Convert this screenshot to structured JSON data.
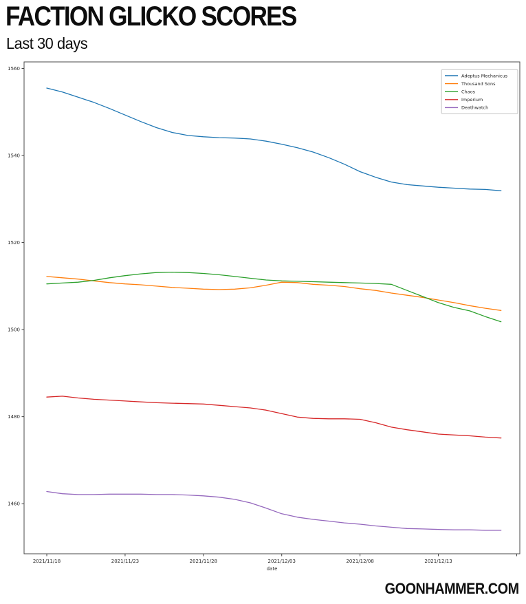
{
  "header": {
    "title": "FACTION GLICKO SCORES",
    "subtitle": "Last 30 days"
  },
  "footer": {
    "brand": "GOONHAMMER.COM"
  },
  "chart_data": {
    "type": "line",
    "title": "FACTION GLICKO SCORES",
    "subtitle": "Last 30 days",
    "xlabel": "date",
    "ylabel": "",
    "grid": false,
    "legend_position": "upper right",
    "ylim": [
      1448.5,
      1561.5
    ],
    "xlim_days": [
      -1.45,
      30.2
    ],
    "y_ticks": [
      1460,
      1480,
      1500,
      1520,
      1540,
      1560
    ],
    "x_tick_days": [
      0,
      5,
      10,
      15,
      20,
      25,
      30
    ],
    "x_tick_labels": [
      "2021/11/18",
      "2021/11/23",
      "2021/11/28",
      "2021/12/03",
      "2021/12/08",
      "2021/12/13",
      ""
    ],
    "x": [
      "2021/11/18",
      "2021/11/19",
      "2021/11/20",
      "2021/11/21",
      "2021/11/22",
      "2021/11/23",
      "2021/11/24",
      "2021/11/25",
      "2021/11/26",
      "2021/11/27",
      "2021/11/28",
      "2021/11/29",
      "2021/11/30",
      "2021/12/01",
      "2021/12/02",
      "2021/12/03",
      "2021/12/04",
      "2021/12/05",
      "2021/12/06",
      "2021/12/07",
      "2021/12/08",
      "2021/12/09",
      "2021/12/10",
      "2021/12/11",
      "2021/12/12",
      "2021/12/13",
      "2021/12/14",
      "2021/12/15",
      "2021/12/16",
      "2021/12/17"
    ],
    "series": [
      {
        "name": "Adeptus Mechanicus",
        "color": "#1f77b4",
        "values": [
          1555.5,
          1554.6,
          1553.4,
          1552.2,
          1550.8,
          1549.3,
          1547.8,
          1546.4,
          1545.3,
          1544.6,
          1544.3,
          1544.1,
          1544.0,
          1543.8,
          1543.3,
          1542.6,
          1541.8,
          1540.8,
          1539.5,
          1538.0,
          1536.3,
          1535.0,
          1533.9,
          1533.3,
          1533.0,
          1532.7,
          1532.5,
          1532.3,
          1532.2,
          1531.9
        ]
      },
      {
        "name": "Thousand Sons",
        "color": "#ff7f0e",
        "values": [
          1512.2,
          1511.9,
          1511.6,
          1511.2,
          1510.8,
          1510.5,
          1510.3,
          1510.0,
          1509.7,
          1509.5,
          1509.3,
          1509.2,
          1509.3,
          1509.6,
          1510.2,
          1510.9,
          1510.8,
          1510.4,
          1510.2,
          1509.9,
          1509.4,
          1509.0,
          1508.4,
          1507.9,
          1507.4,
          1506.8,
          1506.2,
          1505.5,
          1504.9,
          1504.4
        ]
      },
      {
        "name": "Chaos",
        "color": "#2ca02c",
        "values": [
          1510.5,
          1510.7,
          1510.9,
          1511.3,
          1511.9,
          1512.4,
          1512.8,
          1513.1,
          1513.2,
          1513.1,
          1512.9,
          1512.6,
          1512.2,
          1511.8,
          1511.4,
          1511.2,
          1511.1,
          1511.0,
          1510.9,
          1510.8,
          1510.7,
          1510.6,
          1510.4,
          1509.0,
          1507.6,
          1506.2,
          1505.1,
          1504.3,
          1503.0,
          1501.8
        ]
      },
      {
        "name": "Imperium",
        "color": "#d62728",
        "values": [
          1484.5,
          1484.7,
          1484.3,
          1484.0,
          1483.8,
          1483.6,
          1483.4,
          1483.2,
          1483.1,
          1483.0,
          1482.9,
          1482.6,
          1482.3,
          1482.0,
          1481.5,
          1480.7,
          1479.9,
          1479.6,
          1479.5,
          1479.5,
          1479.4,
          1478.6,
          1477.6,
          1477.0,
          1476.5,
          1476.0,
          1475.8,
          1475.6,
          1475.3,
          1475.1
        ]
      },
      {
        "name": "Deathwatch",
        "color": "#9467bd",
        "values": [
          1462.8,
          1462.3,
          1462.1,
          1462.1,
          1462.2,
          1462.2,
          1462.2,
          1462.1,
          1462.1,
          1462.0,
          1461.8,
          1461.5,
          1461.0,
          1460.2,
          1459.0,
          1457.7,
          1456.9,
          1456.4,
          1456.0,
          1455.6,
          1455.3,
          1454.9,
          1454.6,
          1454.3,
          1454.2,
          1454.1,
          1454.0,
          1454.0,
          1453.9,
          1453.9
        ]
      }
    ],
    "style": {
      "spine_color": "#4a4a4a",
      "tick_color": "#333333",
      "legend_border": "#b0b0b0",
      "tick_font_px": 7,
      "legend_font_px": 6.5
    }
  }
}
